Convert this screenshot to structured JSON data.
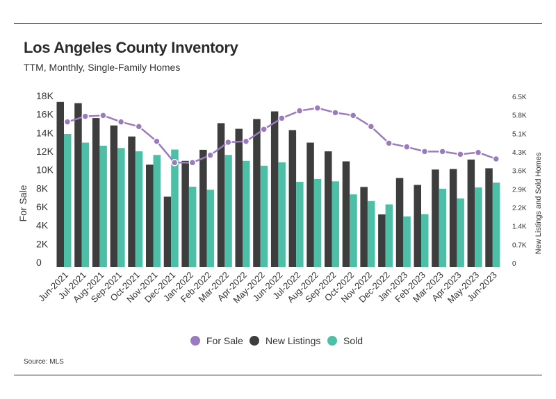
{
  "header": {
    "title": "Los Angeles County Inventory",
    "subtitle": "TTM, Monthly, Single-Family Homes"
  },
  "footer": {
    "source": "Source:  MLS"
  },
  "colors": {
    "for_sale": "#9b7bbf",
    "new_listings": "#3d3d3d",
    "sold": "#4cbfa6"
  },
  "chart_data": {
    "type": "bar",
    "categories": [
      "Jun-2021",
      "Jul-2021",
      "Aug-2021",
      "Sep-2021",
      "Oct-2021",
      "Nov-2021",
      "Dec-2021",
      "Jan-2022",
      "Feb-2022",
      "Mar-2022",
      "Apr-2022",
      "May-2022",
      "Jun-2022",
      "Jul-2022",
      "Aug-2022",
      "Sep-2022",
      "Oct-2022",
      "Nov-2022",
      "Dec-2022",
      "Jan-2023",
      "Feb-2023",
      "Mar-2023",
      "Apr-2023",
      "May-2023",
      "Jun-2023"
    ],
    "series": [
      {
        "name": "For Sale",
        "type": "line",
        "axis": "left",
        "values": [
          15700,
          16300,
          16400,
          15700,
          15200,
          13600,
          11300,
          11300,
          12100,
          13500,
          13600,
          14900,
          16100,
          16900,
          17200,
          16700,
          16400,
          15200,
          13400,
          13000,
          12500,
          12500,
          12200,
          12400,
          11700
        ]
      },
      {
        "name": "New Listings",
        "type": "bar",
        "axis": "right",
        "values": [
          6450,
          6400,
          5820,
          5530,
          5100,
          4000,
          2750,
          4150,
          4580,
          5620,
          5400,
          5780,
          6080,
          5350,
          4860,
          4520,
          4130,
          3130,
          2060,
          3480,
          3210,
          3810,
          3830,
          4200,
          3860
        ]
      },
      {
        "name": "Sold",
        "type": "bar",
        "axis": "right",
        "values": [
          5200,
          4860,
          4740,
          4650,
          4520,
          4380,
          4590,
          3140,
          3020,
          4380,
          4150,
          3960,
          4090,
          3330,
          3440,
          3350,
          2840,
          2580,
          2450,
          1980,
          2070,
          3060,
          2680,
          3110,
          3300
        ]
      }
    ],
    "axes": {
      "left": {
        "label": "For Sale",
        "ticks": [
          "0",
          "2K",
          "4K",
          "6K",
          "8K",
          "10K",
          "12K",
          "14K",
          "16K",
          "18K"
        ],
        "range": [
          0,
          18000
        ]
      },
      "right": {
        "label": "New Listings and Sold Homes",
        "ticks": [
          "0",
          "0.7K",
          "1.4K",
          "2.2K",
          "2.9K",
          "3.6K",
          "4.3K",
          "5.1K",
          "5.8K",
          "6.5K"
        ],
        "range": [
          0,
          6500
        ]
      }
    },
    "grid": false,
    "legend_position": "bottom"
  }
}
